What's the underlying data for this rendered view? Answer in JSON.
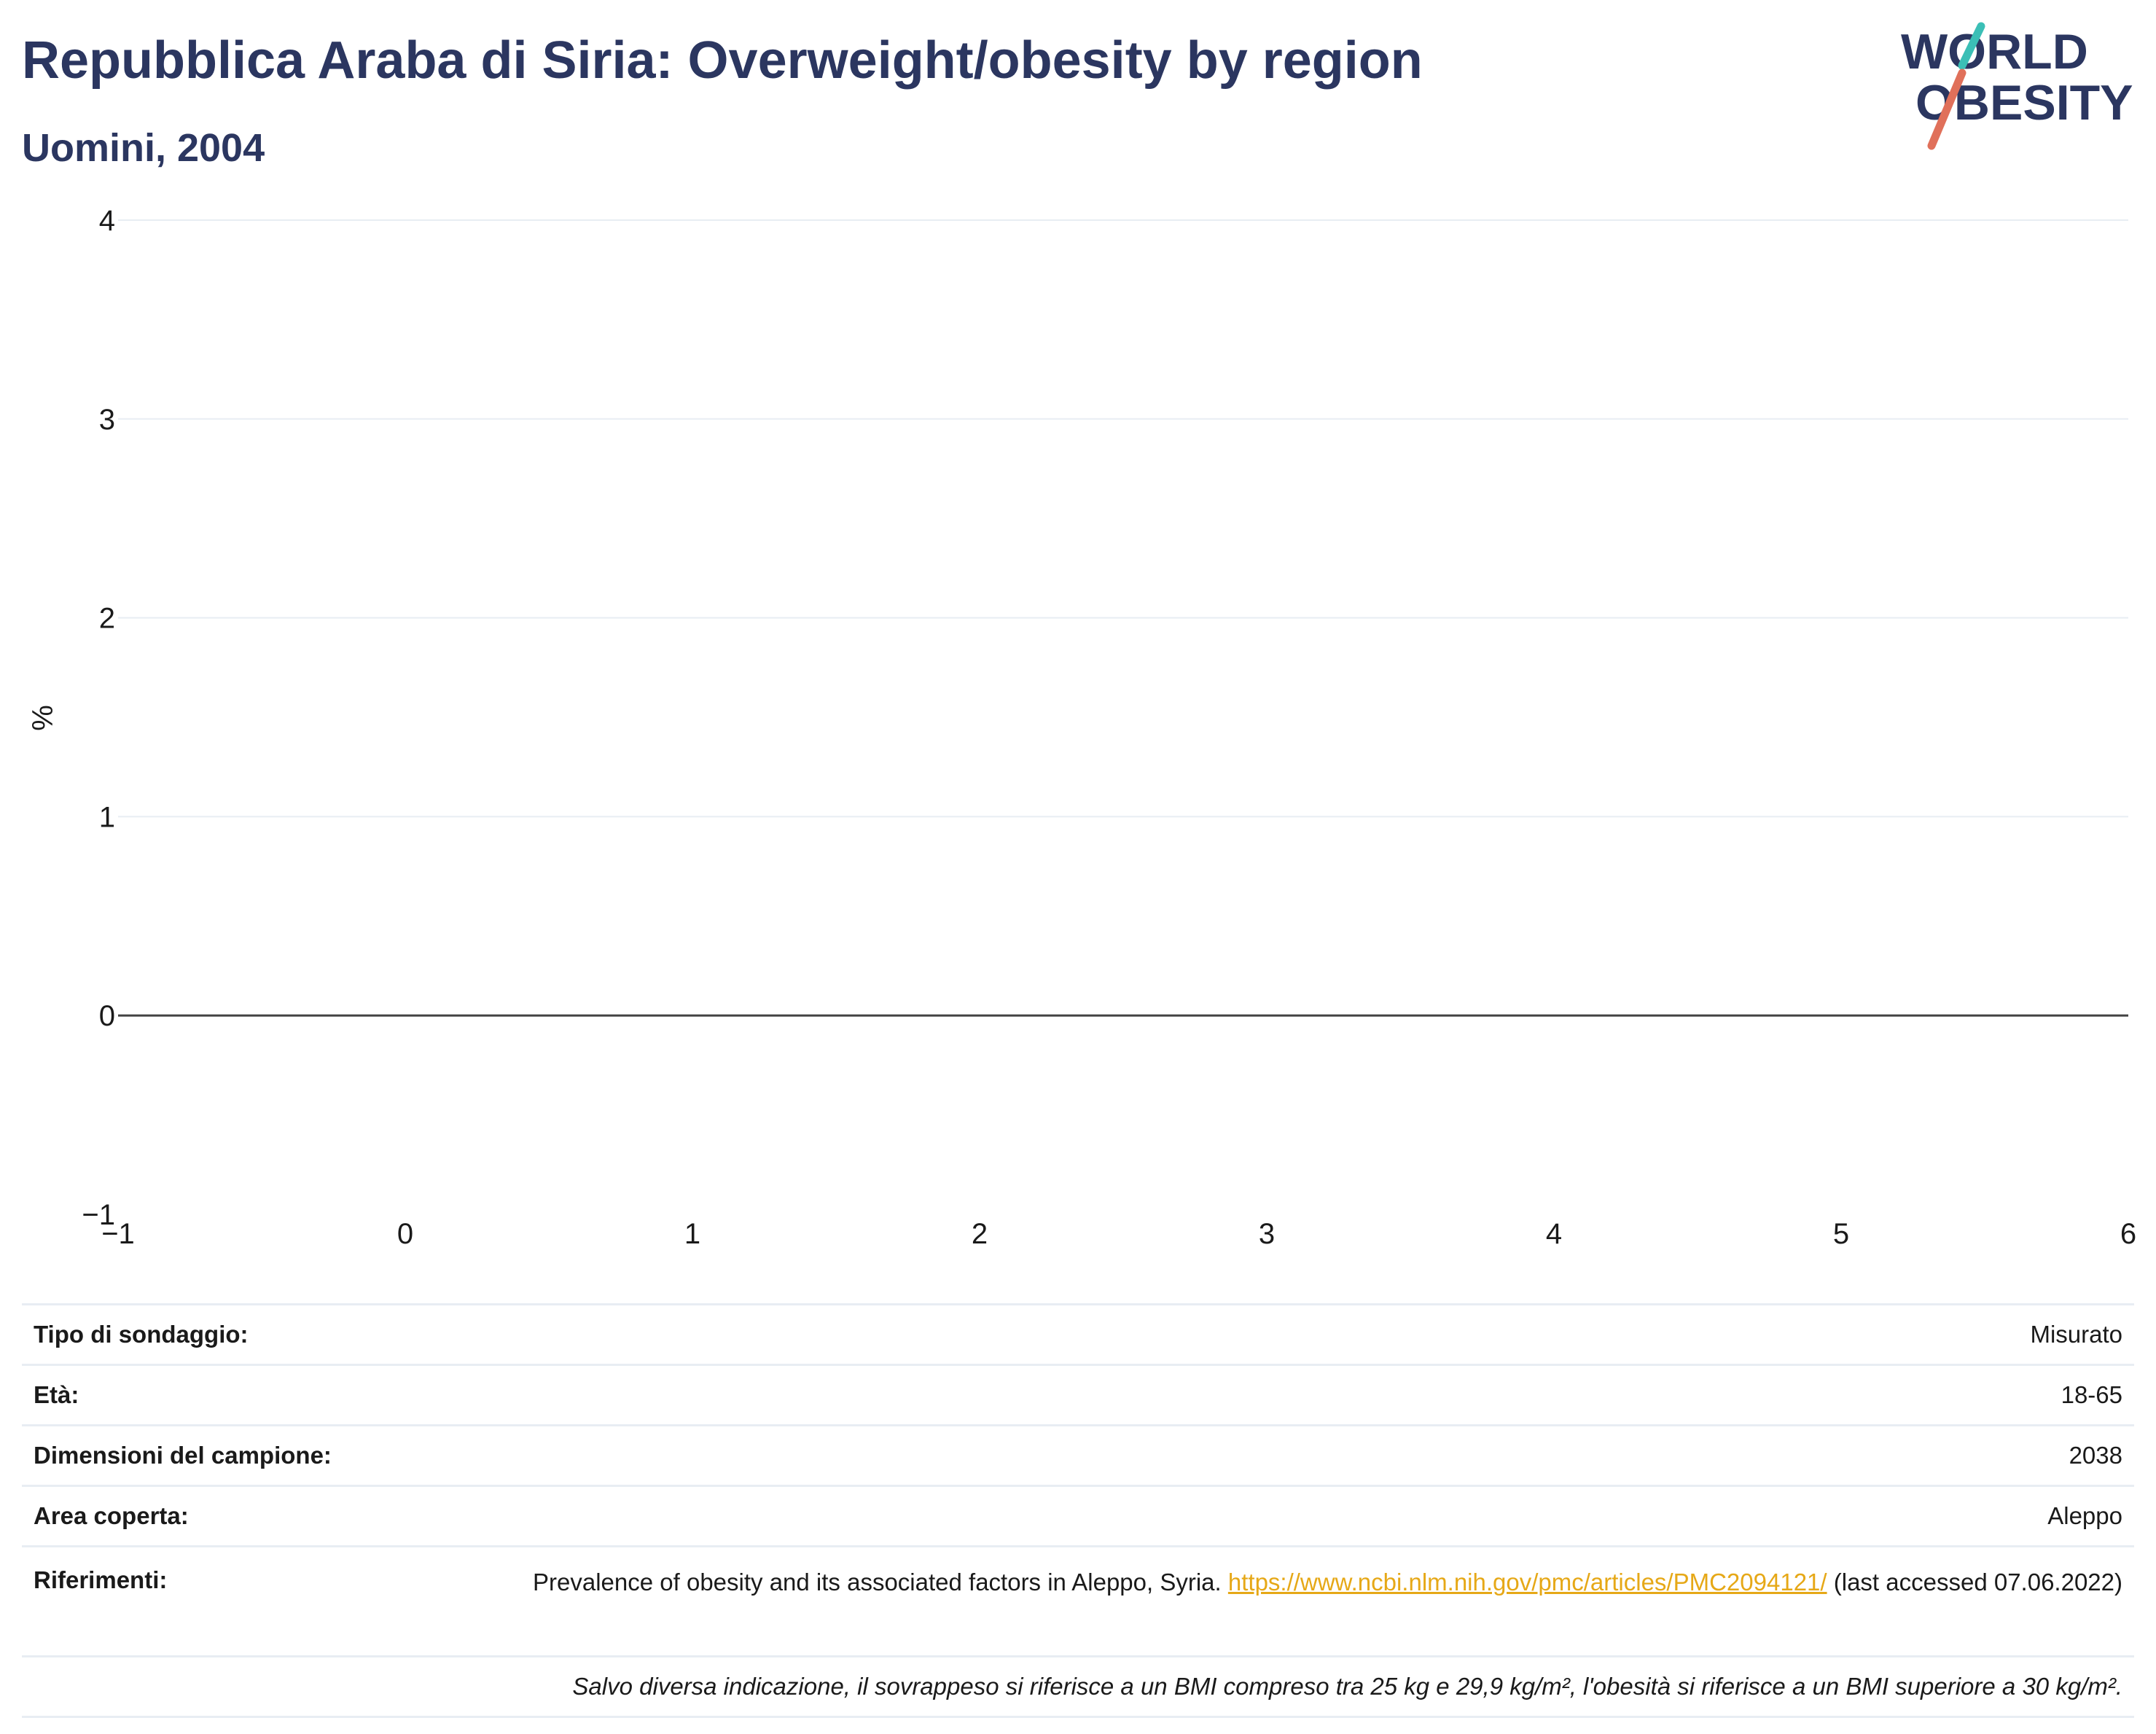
{
  "header": {
    "title": "Repubblica Araba di Siria: Overweight/obesity by region",
    "subtitle": "Uomini, 2004"
  },
  "logo": {
    "line1": "WORLD",
    "line2": "OBESITY",
    "accent_teal": "#3bbfb6",
    "accent_coral": "#e0705a",
    "text_color": "#2b3660"
  },
  "chart_data": {
    "type": "bar",
    "title": "Repubblica Araba di Siria: Overweight/obesity by region",
    "subtitle": "Uomini, 2004",
    "xlabel": "",
    "ylabel": "%",
    "xlim": [
      -1,
      6
    ],
    "ylim": [
      -1,
      4
    ],
    "x_ticks": [
      "−1",
      "0",
      "1",
      "2",
      "3",
      "4",
      "5",
      "6"
    ],
    "y_ticks": [
      "−1",
      "0",
      "1",
      "2",
      "3",
      "4"
    ],
    "y_tick_values": [
      -1,
      0,
      1,
      2,
      3,
      4
    ],
    "x_tick_values": [
      -1,
      0,
      1,
      2,
      3,
      4,
      5,
      6
    ],
    "categories": [],
    "series": [],
    "grid": true,
    "zero_line": true,
    "colors": {
      "grid": "#e8edf3",
      "zero_line": "#444444",
      "tick_text": "#1a1a1a"
    }
  },
  "info": {
    "rows": [
      {
        "label": "Tipo di sondaggio:",
        "value": "Misurato"
      },
      {
        "label": "Età:",
        "value": "18-65"
      },
      {
        "label": "Dimensioni del campione:",
        "value": "2038"
      },
      {
        "label": "Area coperta:",
        "value": "Aleppo"
      }
    ],
    "reference": {
      "label": "Riferimenti:",
      "text_before": "Prevalence of obesity and its associated factors in Aleppo, Syria. ",
      "link": "https://www.ncbi.nlm.nih.gov/pmc/articles/PMC2094121/",
      "text_after": " (last accessed 07.06.2022)"
    },
    "note": "Salvo diversa indicazione, il sovrappeso si riferisce a un BMI compreso tra 25 kg e 29,9 kg/m², l'obesità si riferisce a un BMI superiore a 30 kg/m²."
  }
}
